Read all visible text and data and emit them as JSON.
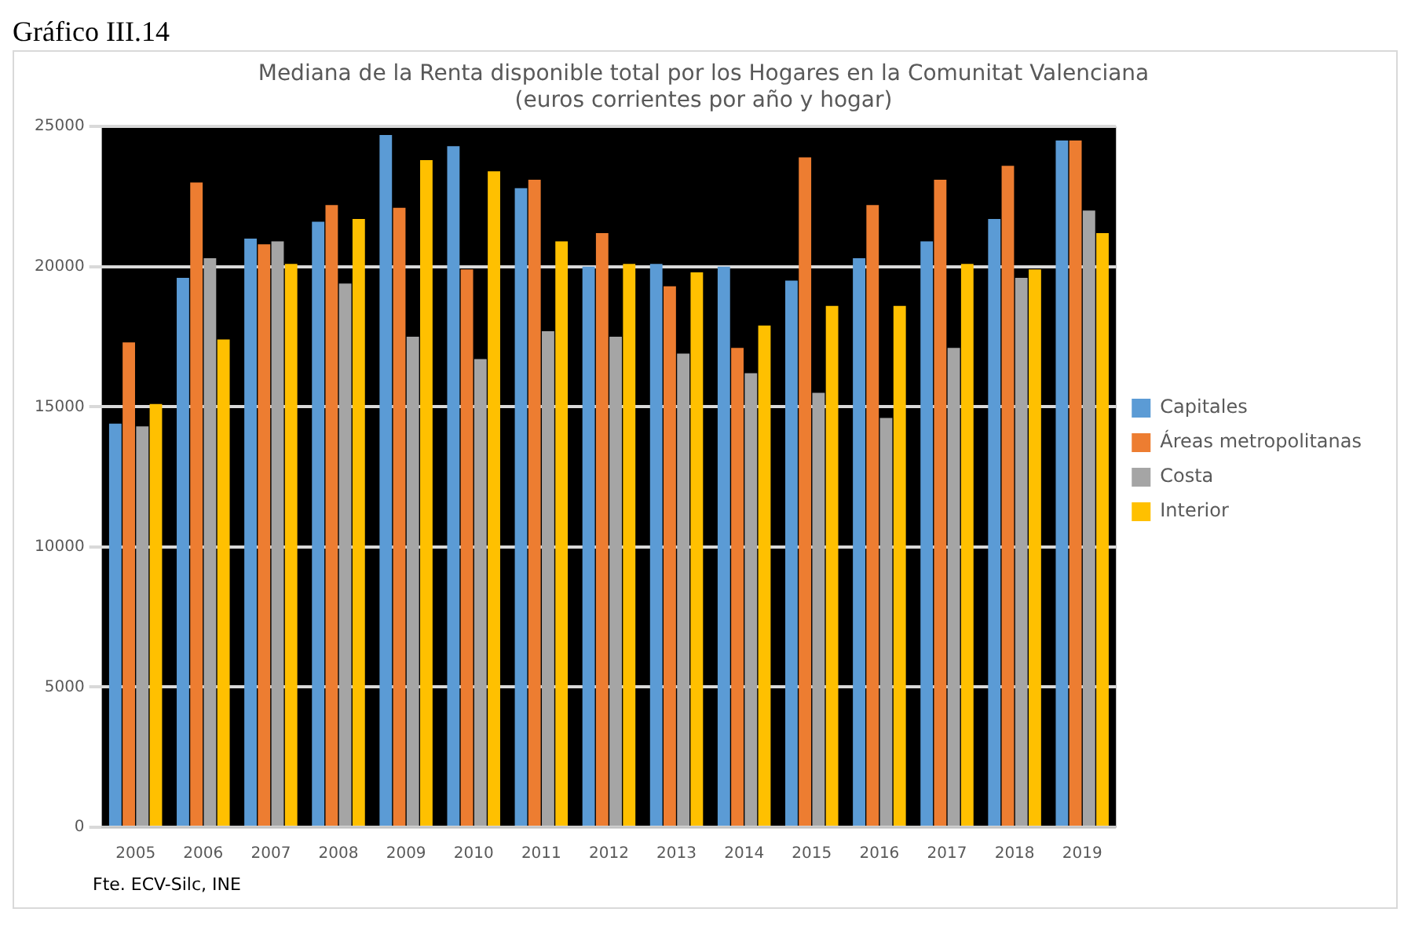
{
  "chart_data": {
    "type": "bar",
    "title": [
      "Mediana de la Renta disponible total por los Hogares en la Comunitat Valenciana",
      "(euros corrientes por año y hogar)"
    ],
    "categories": [
      "2005",
      "2006",
      "2007",
      "2008",
      "2009",
      "2010",
      "2011",
      "2012",
      "2013",
      "2014",
      "2015",
      "2016",
      "2017",
      "2018",
      "2019"
    ],
    "series": [
      {
        "name": "Capitales",
        "color": "#5b9bd5",
        "values": [
          14400,
          19600,
          21000,
          21600,
          24700,
          24300,
          22800,
          20000,
          20100,
          20000,
          19500,
          20300,
          20900,
          21700,
          24500
        ]
      },
      {
        "name": "Áreas metropolitanas",
        "color": "#ed7d31",
        "values": [
          17300,
          23000,
          20800,
          22200,
          22100,
          19900,
          23100,
          21200,
          19300,
          17100,
          23900,
          22200,
          23100,
          23600,
          24500
        ]
      },
      {
        "name": "Costa",
        "color": "#a5a5a5",
        "values": [
          14300,
          20300,
          20900,
          19400,
          17500,
          16700,
          17700,
          17500,
          16900,
          16200,
          15500,
          14600,
          17100,
          19600,
          22000
        ]
      },
      {
        "name": "Interior",
        "color": "#ffc000",
        "values": [
          15100,
          17400,
          20100,
          21700,
          23800,
          23400,
          20900,
          20100,
          19800,
          17900,
          18600,
          18600,
          20100,
          19900,
          21200
        ]
      }
    ],
    "ylim": [
      0,
      25000
    ],
    "yticks": [
      0,
      5000,
      10000,
      15000,
      20000,
      25000
    ],
    "grid": "y",
    "legend": "right",
    "annotations": [
      "Gráfico III.14",
      "Fte. ECV-Silc, INE"
    ]
  }
}
